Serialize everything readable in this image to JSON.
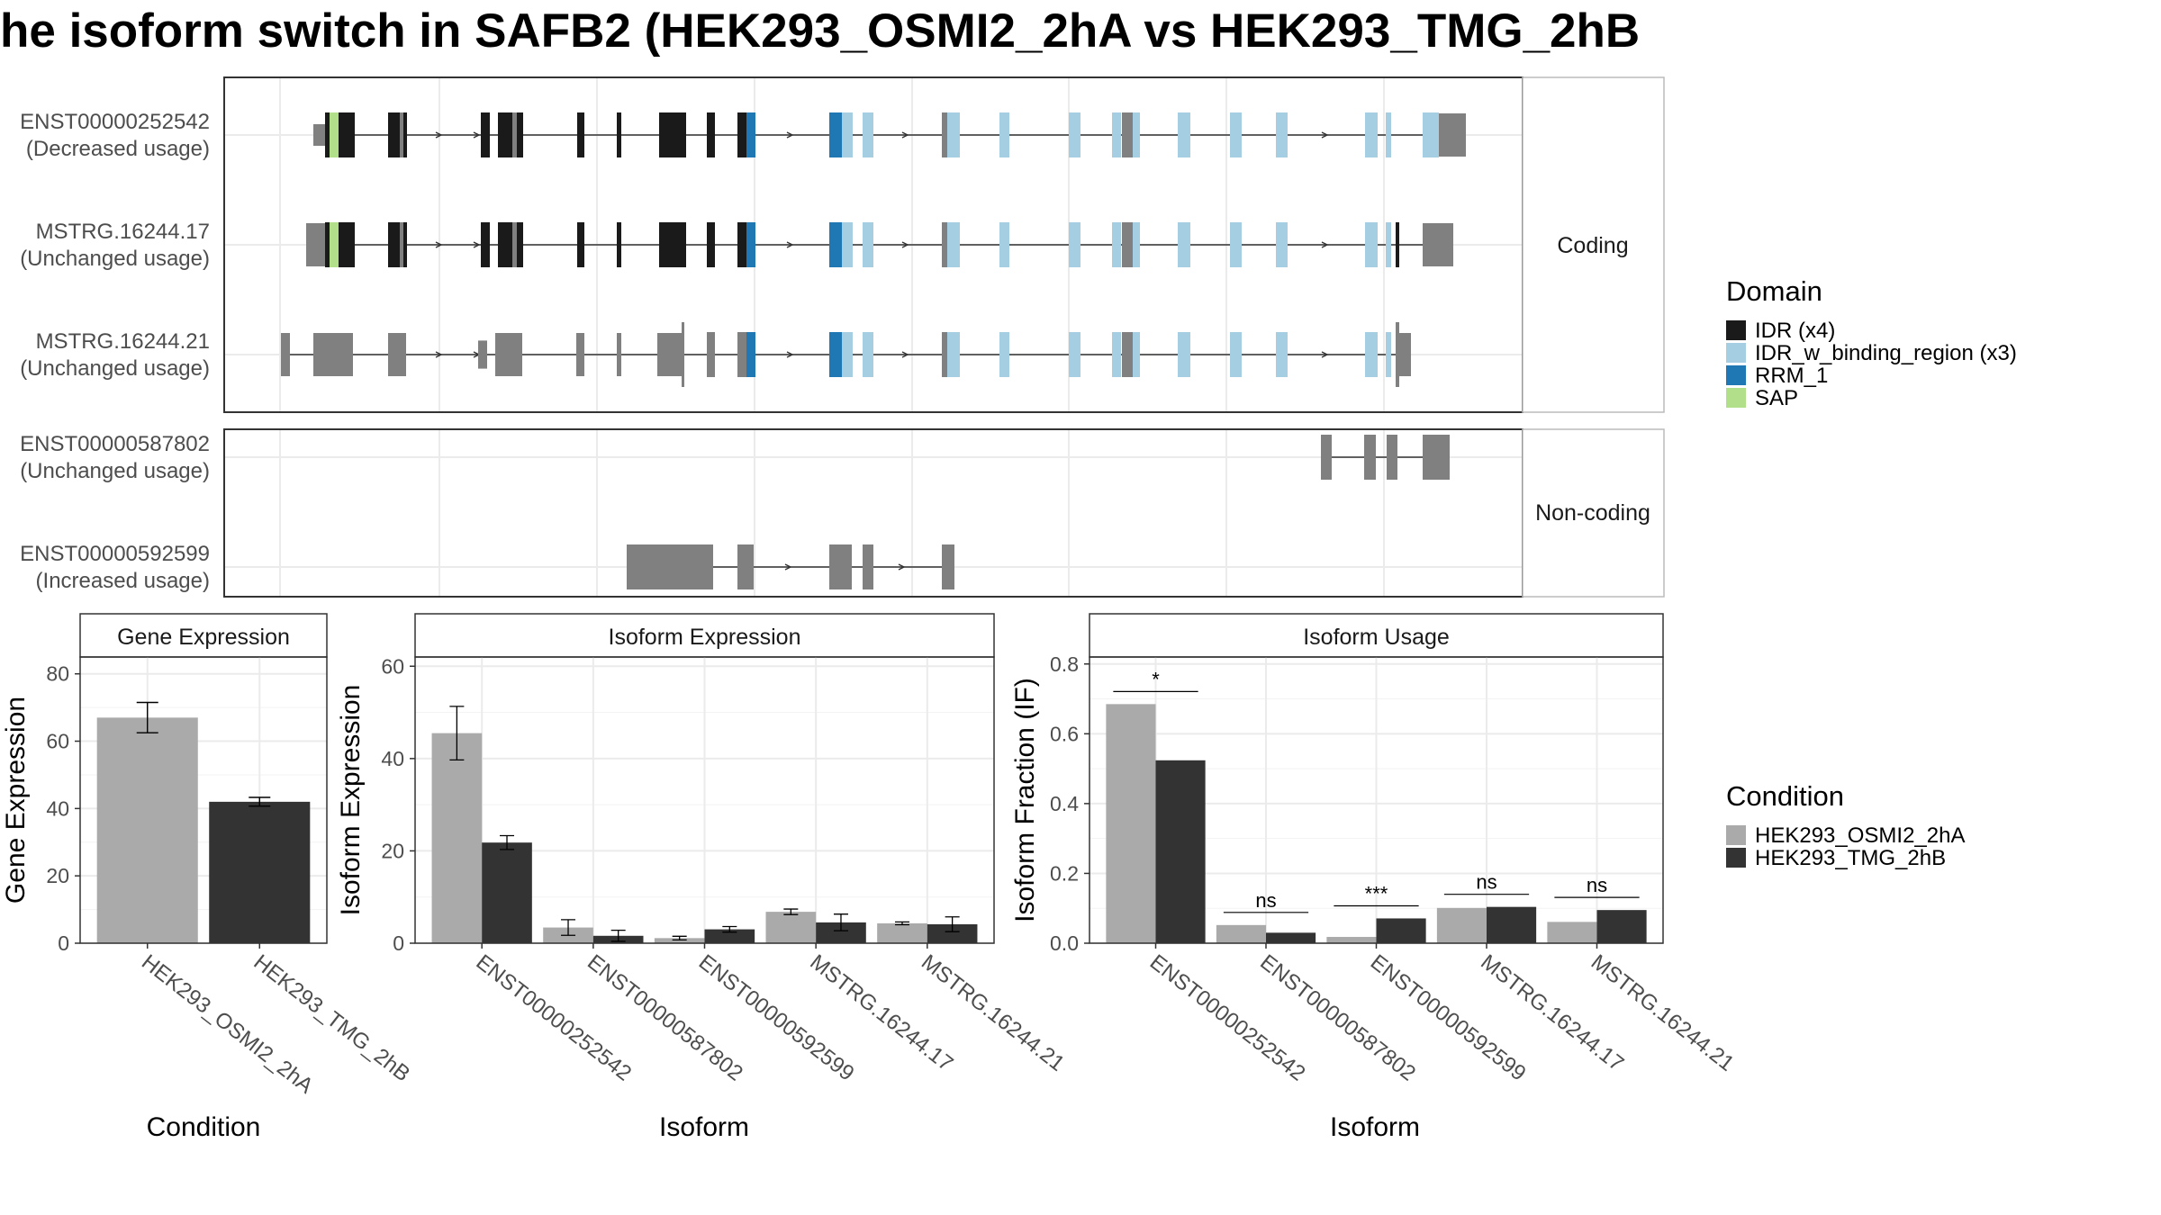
{
  "title": "he isoform switch in SAFB2 (HEK293_OSMI2_2hA vs HEK293_TMG_2hB",
  "colors": {
    "idr": "#1a1a1a",
    "idr_binding": "#a6cee3",
    "rrm": "#1f78b4",
    "sap": "#b2df8a",
    "noncoding": "#808080",
    "cond_a": "#aaaaaa",
    "cond_b": "#333333"
  },
  "structure": {
    "panels": [
      "Coding",
      "Non-coding"
    ],
    "coding_labels": [
      [
        "ENST00000252542",
        "(Decreased usage)"
      ],
      [
        "MSTRG.16244.17",
        "(Unchanged usage)"
      ],
      [
        "MSTRG.16244.21",
        "(Unchanged usage)"
      ]
    ],
    "noncoding_labels": [
      [
        "ENST00000587802",
        "(Unchanged usage)"
      ],
      [
        "ENST00000592599",
        "(Increased usage)"
      ]
    ]
  },
  "legend_domain": {
    "title": "Domain",
    "items": [
      {
        "label": "IDR (x4)",
        "color": "#1a1a1a"
      },
      {
        "label": "IDR_w_binding_region (x3)",
        "color": "#a6cee3"
      },
      {
        "label": "RRM_1",
        "color": "#1f78b4"
      },
      {
        "label": "SAP",
        "color": "#b2df8a"
      }
    ]
  },
  "legend_condition": {
    "title": "Condition",
    "items": [
      {
        "label": "HEK293_OSMI2_2hA",
        "color": "#aaaaaa"
      },
      {
        "label": "HEK293_TMG_2hB",
        "color": "#333333"
      }
    ]
  },
  "chart_data": [
    {
      "type": "bar",
      "title": "Gene Expression",
      "xlabel": "Condition",
      "ylabel": "Gene Expression",
      "ylim": [
        0,
        85
      ],
      "yticks": [
        0,
        20,
        40,
        60,
        80
      ],
      "categories": [
        "HEK293_OSMI2_2hA",
        "HEK293_TMG_2hB"
      ],
      "values": [
        67,
        42
      ],
      "errors": [
        4.5,
        1.3
      ],
      "colors": [
        "#aaaaaa",
        "#333333"
      ]
    },
    {
      "type": "bar",
      "title": "Isoform Expression",
      "xlabel": "Isoform",
      "ylabel": "Isoform Expression",
      "ylim": [
        0,
        62
      ],
      "yticks": [
        0,
        20,
        40,
        60
      ],
      "categories": [
        "ENST00000252542",
        "ENST00000587802",
        "ENST00000592599",
        "MSTRG.16244.17",
        "MSTRG.16244.21"
      ],
      "series": [
        {
          "name": "HEK293_OSMI2_2hA",
          "values": [
            45.5,
            3.4,
            1.1,
            6.8,
            4.3
          ],
          "errors": [
            5.8,
            1.7,
            0.4,
            0.6,
            0.3
          ]
        },
        {
          "name": "HEK293_TMG_2hB",
          "values": [
            21.8,
            1.6,
            3.0,
            4.5,
            4.1
          ],
          "errors": [
            1.5,
            1.2,
            0.6,
            1.8,
            1.6
          ]
        }
      ]
    },
    {
      "type": "bar",
      "title": "Isoform Usage",
      "xlabel": "Isoform",
      "ylabel": "Isoform Fraction (IF)",
      "ylim": [
        0,
        0.82
      ],
      "yticks": [
        0.0,
        0.2,
        0.4,
        0.6,
        0.8
      ],
      "ytick_labels": [
        "0.0",
        "0.2",
        "0.4",
        "0.6",
        "0.8"
      ],
      "categories": [
        "ENST00000252542",
        "ENST00000587802",
        "ENST00000592599",
        "MSTRG.16244.17",
        "MSTRG.16244.21"
      ],
      "series": [
        {
          "name": "HEK293_OSMI2_2hA",
          "values": [
            0.685,
            0.052,
            0.018,
            0.101,
            0.061
          ]
        },
        {
          "name": "HEK293_TMG_2hB",
          "values": [
            0.524,
            0.03,
            0.071,
            0.104,
            0.095
          ]
        }
      ],
      "significance": [
        "*",
        "ns",
        "***",
        "ns",
        "ns"
      ]
    }
  ]
}
